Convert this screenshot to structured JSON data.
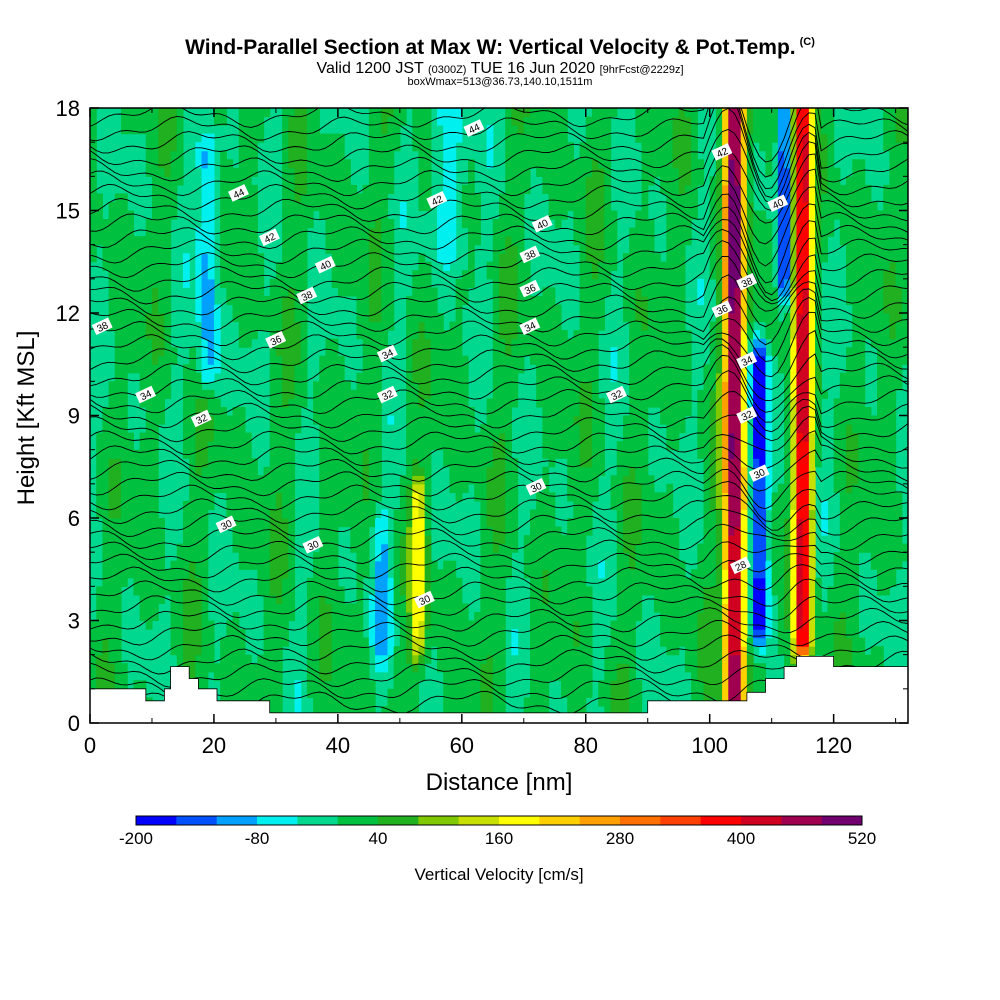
{
  "header": {
    "title": "Wind-Parallel Section at Max W: Vertical Velocity & Pot.Temp.",
    "copyright": "(C)",
    "valid_prefix": "Valid 1200 JST",
    "valid_utc": "(0300Z)",
    "valid_date": "TUE 16 Jun 2020",
    "forecast": "[9hrFcst@2229z]",
    "box_info": "boxWmax=513@36.73,140.10,1511m"
  },
  "colors": {
    "background": "#ffffff",
    "terrain": "#ffffff",
    "default_fill": "#00d890",
    "contour": "#000000"
  },
  "chart_data": {
    "type": "heatmap",
    "subtype": "vertical cross-section, filled contours with overlaid contour lines",
    "xlabel": "Distance [nm]",
    "ylabel": "Height [Kft MSL]",
    "xlim": [
      0,
      132
    ],
    "ylim": [
      0,
      18
    ],
    "x_ticks": [
      0,
      20,
      40,
      60,
      80,
      100,
      120
    ],
    "y_ticks": [
      0,
      3,
      6,
      9,
      12,
      15,
      18
    ],
    "colorbar": {
      "label": "Vertical Velocity [cm/s]",
      "tick_labels": [
        "-200",
        "-80",
        "40",
        "160",
        "280",
        "400",
        "520"
      ],
      "tick_values": [
        -200,
        -80,
        40,
        160,
        280,
        400,
        520
      ],
      "levels": [
        -200,
        -160,
        -120,
        -80,
        -40,
        0,
        40,
        80,
        120,
        160,
        200,
        240,
        280,
        320,
        360,
        400,
        440,
        480,
        520
      ],
      "colors": [
        "#0000ff",
        "#0050ff",
        "#00a0ff",
        "#00f0f0",
        "#00d890",
        "#00c040",
        "#20b020",
        "#80c800",
        "#c8e000",
        "#ffff00",
        "#ffd000",
        "#ffa000",
        "#ff7000",
        "#ff4000",
        "#ff0000",
        "#d00020",
        "#a00050",
        "#700070"
      ]
    },
    "theta_contour_labels": [
      {
        "text": "44",
        "x": 24,
        "y": 15.5
      },
      {
        "text": "44",
        "x": 62,
        "y": 17.4
      },
      {
        "text": "42",
        "x": 29,
        "y": 14.2
      },
      {
        "text": "42",
        "x": 56,
        "y": 15.3
      },
      {
        "text": "42",
        "x": 102,
        "y": 16.7
      },
      {
        "text": "40",
        "x": 38,
        "y": 13.4
      },
      {
        "text": "40",
        "x": 73,
        "y": 14.6
      },
      {
        "text": "40",
        "x": 111,
        "y": 15.2
      },
      {
        "text": "38",
        "x": 2,
        "y": 11.6
      },
      {
        "text": "38",
        "x": 35,
        "y": 12.5
      },
      {
        "text": "38",
        "x": 71,
        "y": 13.7
      },
      {
        "text": "38",
        "x": 106,
        "y": 12.9
      },
      {
        "text": "36",
        "x": 30,
        "y": 11.2
      },
      {
        "text": "36",
        "x": 71,
        "y": 12.7
      },
      {
        "text": "36",
        "x": 102,
        "y": 12.1
      },
      {
        "text": "34",
        "x": 9,
        "y": 9.6
      },
      {
        "text": "34",
        "x": 48,
        "y": 10.8
      },
      {
        "text": "34",
        "x": 71,
        "y": 11.6
      },
      {
        "text": "34",
        "x": 106,
        "y": 10.6
      },
      {
        "text": "32",
        "x": 18,
        "y": 8.9
      },
      {
        "text": "32",
        "x": 48,
        "y": 9.6
      },
      {
        "text": "32",
        "x": 85,
        "y": 9.6
      },
      {
        "text": "32",
        "x": 106,
        "y": 9.0
      },
      {
        "text": "30",
        "x": 22,
        "y": 5.8
      },
      {
        "text": "30",
        "x": 36,
        "y": 5.2
      },
      {
        "text": "30",
        "x": 72,
        "y": 6.9
      },
      {
        "text": "30",
        "x": 54,
        "y": 3.6
      },
      {
        "text": "30",
        "x": 108,
        "y": 7.3
      },
      {
        "text": "28",
        "x": 105,
        "y": 4.6
      }
    ],
    "terrain_profile": [
      {
        "x": 0,
        "y": 1.0
      },
      {
        "x": 9,
        "y": 1.0
      },
      {
        "x": 9,
        "y": 0.65
      },
      {
        "x": 12,
        "y": 0.65
      },
      {
        "x": 12,
        "y": 1.0
      },
      {
        "x": 13,
        "y": 1.0
      },
      {
        "x": 13,
        "y": 1.65
      },
      {
        "x": 16,
        "y": 1.65
      },
      {
        "x": 16,
        "y": 1.3
      },
      {
        "x": 17.5,
        "y": 1.3
      },
      {
        "x": 17.5,
        "y": 1.0
      },
      {
        "x": 20.5,
        "y": 1.0
      },
      {
        "x": 20.5,
        "y": 0.65
      },
      {
        "x": 29,
        "y": 0.65
      },
      {
        "x": 29,
        "y": 0.3
      },
      {
        "x": 90,
        "y": 0.3
      },
      {
        "x": 90,
        "y": 0.65
      },
      {
        "x": 106,
        "y": 0.65
      },
      {
        "x": 106,
        "y": 0.9
      },
      {
        "x": 109,
        "y": 0.9
      },
      {
        "x": 109,
        "y": 1.3
      },
      {
        "x": 112,
        "y": 1.3
      },
      {
        "x": 112,
        "y": 1.65
      },
      {
        "x": 114,
        "y": 1.65
      },
      {
        "x": 114,
        "y": 1.95
      },
      {
        "x": 120,
        "y": 1.95
      },
      {
        "x": 120,
        "y": 1.65
      },
      {
        "x": 132,
        "y": 1.65
      }
    ],
    "features": [
      {
        "kind": "updraft",
        "x": 104,
        "y0": 0.7,
        "y1": 18,
        "peak_w": 500,
        "half_width": 1.6
      },
      {
        "kind": "updraft",
        "x": 115,
        "y0": 2.5,
        "y1": 18,
        "peak_w": 420,
        "half_width": 1.4
      },
      {
        "kind": "downdraft",
        "x": 108,
        "y0": 3.0,
        "y1": 10.5,
        "peak_w": -200,
        "half_width": 1.4
      },
      {
        "kind": "downdraft",
        "x": 112,
        "y0": 13.0,
        "y1": 18,
        "peak_w": -160,
        "half_width": 1.0
      },
      {
        "kind": "updraft",
        "x": 53,
        "y0": 2.5,
        "y1": 6.5,
        "peak_w": 160,
        "half_width": 1.2
      },
      {
        "kind": "downdraft",
        "x": 19,
        "y0": 10.5,
        "y1": 16.5,
        "peak_w": -120,
        "half_width": 1.6
      },
      {
        "kind": "downdraft",
        "x": 47,
        "y0": 2.5,
        "y1": 5.5,
        "peak_w": -80,
        "half_width": 1.5
      },
      {
        "kind": "downdraft",
        "x": 58,
        "y0": 14.0,
        "y1": 18,
        "peak_w": -80,
        "half_width": 3.0
      }
    ]
  }
}
